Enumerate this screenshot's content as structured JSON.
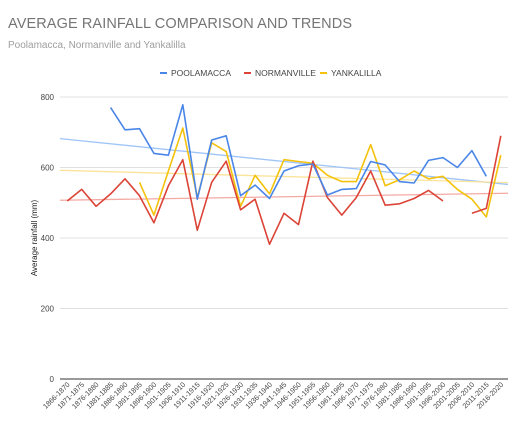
{
  "chart_data": {
    "type": "line",
    "title": "AVERAGE RAINFALL COMPARISON AND TRENDS",
    "subtitle": "Poolamacca, Normanville and Yankalilla",
    "xlabel": "",
    "ylabel": "Average rainfall (mm)",
    "ylim": [
      0,
      800
    ],
    "yticks": [
      0,
      200,
      400,
      600,
      800
    ],
    "grid": true,
    "legend_position": "top",
    "categories": [
      "1866-1870",
      "1871-1875",
      "1876-1880",
      "1881-1885",
      "1886-1890",
      "1891-1895",
      "1896-1900",
      "1901-1905",
      "1906-1910",
      "1911-1915",
      "1916-1920",
      "1921-1925",
      "1926-1930",
      "1931-1935",
      "1936-1940",
      "1941-1945",
      "1946-1950",
      "1951-1955",
      "1956-1960",
      "1961-1965",
      "1966-1970",
      "1971-1975",
      "1976-1980",
      "1981-1985",
      "1986-1990",
      "1991-1995",
      "1996-2000",
      "2001-2005",
      "2006-2010",
      "2011-2015",
      "2016-2020"
    ],
    "series": [
      {
        "name": "POOLAMACCA",
        "color": "#4a86e8",
        "values": [
          null,
          null,
          null,
          770,
          707,
          710,
          640,
          635,
          778,
          510,
          678,
          690,
          520,
          550,
          512,
          590,
          605,
          610,
          522,
          538,
          540,
          617,
          607,
          560,
          556,
          620,
          628,
          600,
          648,
          575,
          null
        ],
        "trend": [
          682,
          552
        ]
      },
      {
        "name": "NORMANVILLE",
        "color": "#db4437",
        "values": [
          505,
          538,
          490,
          525,
          568,
          520,
          443,
          548,
          622,
          422,
          558,
          618,
          480,
          510,
          382,
          470,
          438,
          618,
          515,
          465,
          515,
          590,
          493,
          497,
          512,
          535,
          505,
          null,
          470,
          484,
          690
        ],
        "trend": [
          507,
          527
        ]
      },
      {
        "name": "YANKALILLA",
        "color": "#f4c20d",
        "values": [
          null,
          null,
          null,
          null,
          null,
          558,
          465,
          590,
          712,
          515,
          670,
          645,
          490,
          578,
          525,
          622,
          617,
          612,
          578,
          560,
          560,
          665,
          548,
          565,
          590,
          568,
          575,
          538,
          510,
          460,
          635
        ],
        "trend": [
          592,
          557
        ]
      }
    ],
    "trend_lines": [
      {
        "series": "POOLAMACCA",
        "color": "#9fc5f8"
      },
      {
        "series": "NORMANVILLE",
        "color": "#f4a9a3"
      },
      {
        "series": "YANKALILLA",
        "color": "#fbe49a"
      }
    ]
  }
}
